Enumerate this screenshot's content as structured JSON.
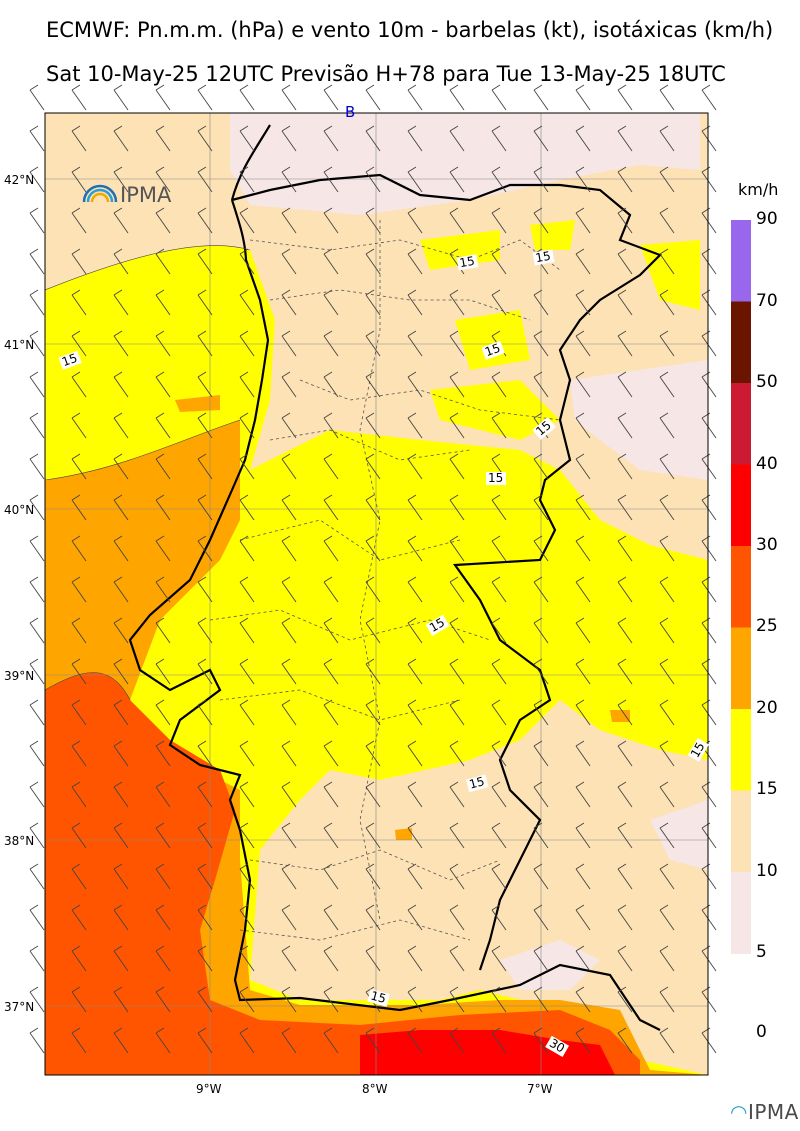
{
  "header": {
    "line1": "ECMWF: Pn.m.m. (hPa) e vento 10m - barbelas (kt), isotáxicas (km/h)",
    "line2": "Sat 10-May-25 12UTC Previsão H+78 para Tue 13-May-25 18UTC"
  },
  "map": {
    "pressure_marker": "B",
    "lat_labels": [
      "42°N",
      "41°N",
      "40°N",
      "39°N",
      "38°N",
      "37°N"
    ],
    "lon_labels": [
      "9°W",
      "8°W",
      "7°W"
    ],
    "contour_labels": [
      "15",
      "15",
      "15",
      "15",
      "15",
      "15",
      "15",
      "15",
      "15",
      "15",
      "15",
      "30"
    ],
    "brand_logo": "IPMA",
    "land_fill": "#ffff00",
    "sea_fill_colors": [
      "#ffa500",
      "#ff5500",
      "#ff0000"
    ]
  },
  "colorbar": {
    "unit": "km/h",
    "ticks": [
      "90",
      "70",
      "50",
      "40",
      "30",
      "25",
      "20",
      "15",
      "10",
      "5",
      "0"
    ],
    "colors": [
      "#9966ee",
      "#6b1500",
      "#cc1a33",
      "#ff0000",
      "#ff5500",
      "#ffa500",
      "#ffff00",
      "#fde2b5",
      "#f6e6e6"
    ]
  },
  "footer": {
    "brand": "IPMA"
  }
}
